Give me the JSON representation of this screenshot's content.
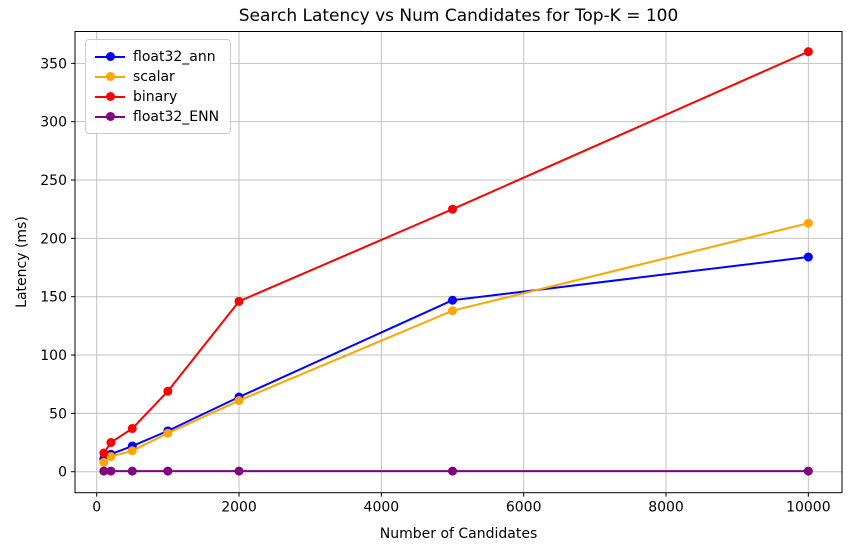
{
  "chart_data": {
    "type": "line",
    "title": "Search Latency vs Num Candidates for Top-K = 100",
    "xlabel": "Number of Candidates",
    "ylabel": "Latency (ms)",
    "x": [
      100,
      200,
      500,
      1000,
      2000,
      5000,
      10000
    ],
    "series": [
      {
        "name": "float32_ann",
        "color": "#0000ff",
        "values": [
          11,
          15,
          22,
          35,
          64,
          147,
          184
        ]
      },
      {
        "name": "scalar",
        "color": "#ffa500",
        "values": [
          8,
          13,
          18,
          33,
          61,
          138,
          213
        ]
      },
      {
        "name": "binary",
        "color": "#ff0000",
        "values": [
          16,
          25,
          37,
          69,
          146,
          225,
          360
        ]
      },
      {
        "name": "float32_ENN",
        "color": "#800080",
        "values": [
          0.5,
          0.5,
          0.5,
          0.5,
          0.5,
          0.5,
          0.5
        ]
      }
    ],
    "x_ticks": [
      0,
      2000,
      4000,
      6000,
      8000,
      10000
    ],
    "y_ticks": [
      0,
      50,
      100,
      150,
      200,
      250,
      300,
      350
    ],
    "xlim": [
      -305,
      10473
    ],
    "ylim": [
      -18,
      377.3
    ],
    "grid": true,
    "legend_position": "upper left",
    "marker": "o",
    "grid_color": "#c2c2c2",
    "spine_color": "#000000",
    "background_color": "#ffffff"
  }
}
